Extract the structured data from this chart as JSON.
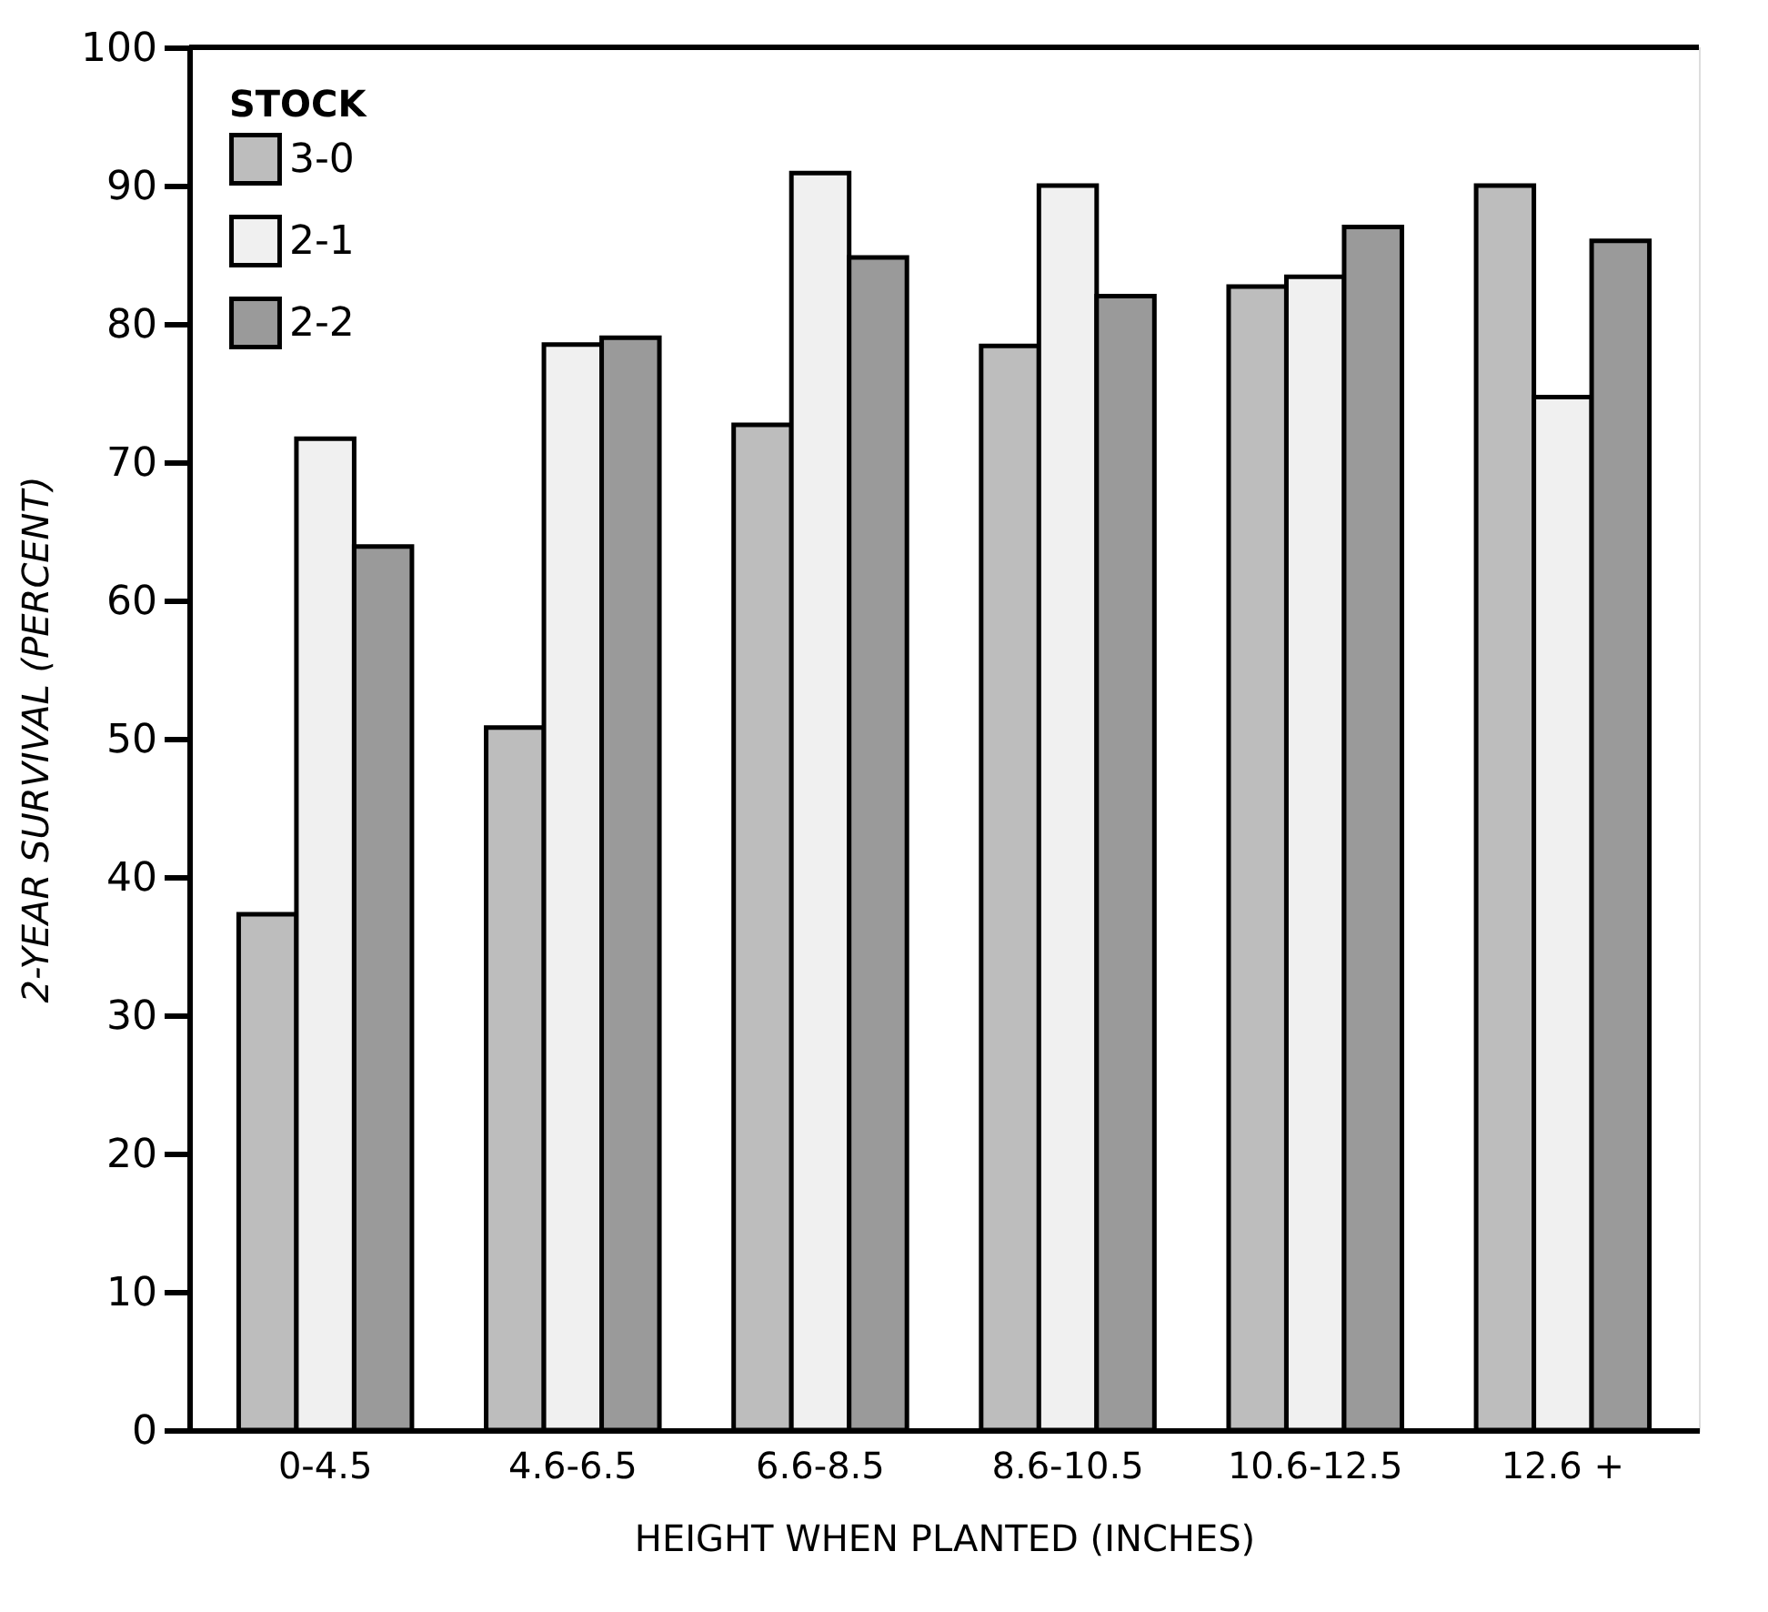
{
  "chart_data": {
    "type": "bar",
    "xlabel": "HEIGHT  WHEN  PLANTED (INCHES)",
    "ylabel": "2-YEAR SURVIVAL (PERCENT)",
    "legend_title": "STOCK",
    "categories": [
      "0-4.5",
      "4.6-6.5",
      "6.6-8.5",
      "8.6-10.5",
      "10.6-12.5",
      "12.6 +"
    ],
    "series": [
      {
        "name": "3-0",
        "color": "#bdbdbd",
        "values": [
          37.3,
          50.8,
          72.7,
          78.4,
          82.7,
          90.0
        ]
      },
      {
        "name": "2-1",
        "color": "#f0f0f0",
        "values": [
          71.7,
          78.5,
          90.9,
          90.0,
          83.4,
          74.7
        ]
      },
      {
        "name": "2-2",
        "color": "#9a9a9a",
        "values": [
          63.9,
          79.0,
          84.8,
          82.0,
          87.0,
          86.0
        ]
      }
    ],
    "ylim": [
      0,
      100
    ],
    "yticks": [
      0,
      10,
      20,
      30,
      40,
      50,
      60,
      70,
      80,
      90,
      100
    ],
    "grid": false,
    "legend": "top left"
  }
}
